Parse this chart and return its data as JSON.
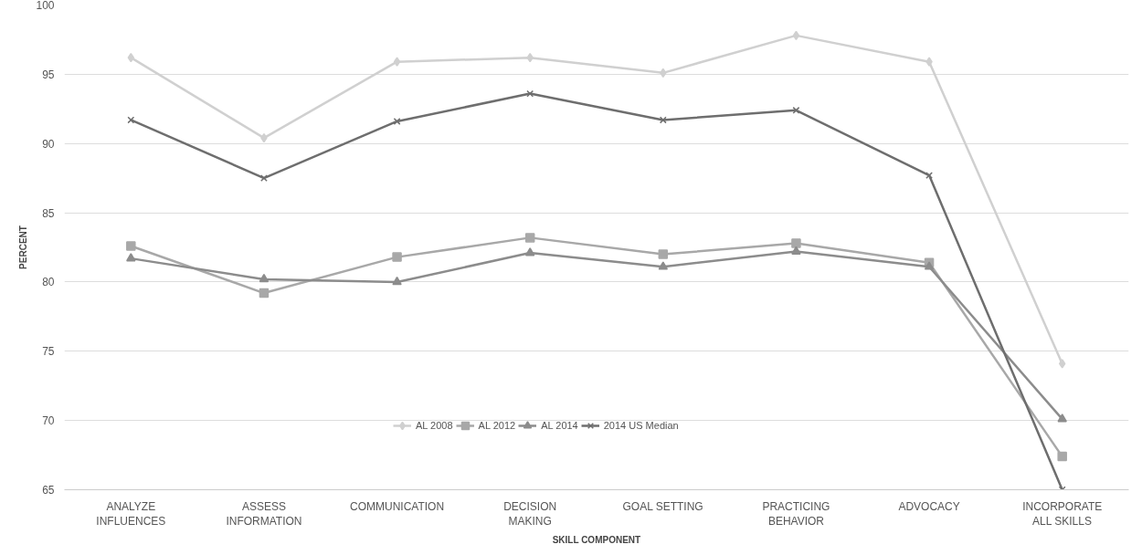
{
  "chart_data": {
    "type": "line",
    "xlabel": "SKILL COMPONENT",
    "ylabel": "PERCENT",
    "categories": [
      "ANALYZE INFLUENCES",
      "ASSESS INFORMATION",
      "COMMUNICATION",
      "DECISION MAKING",
      "GOAL SETTING",
      "PRACTICING BEHAVIOR",
      "ADVOCACY",
      "INCORPORATE ALL SKILLS"
    ],
    "series": [
      {
        "name": "AL 2008",
        "color": "#d0d0d0",
        "marker": "diamond",
        "values": [
          96.2,
          90.4,
          95.9,
          96.2,
          95.1,
          97.8,
          95.9,
          74.1
        ]
      },
      {
        "name": "AL 2012",
        "color": "#a8a8a8",
        "marker": "square",
        "values": [
          82.6,
          79.2,
          81.8,
          83.2,
          82.0,
          82.8,
          81.4,
          67.4
        ]
      },
      {
        "name": "AL 2014",
        "color": "#8c8c8c",
        "marker": "triangle",
        "values": [
          81.7,
          80.2,
          80.0,
          82.1,
          81.1,
          82.2,
          81.1,
          70.1
        ]
      },
      {
        "name": "2014 US Median",
        "color": "#6e6e6e",
        "marker": "cross",
        "values": [
          91.7,
          87.5,
          91.6,
          93.6,
          91.7,
          92.4,
          87.7,
          65.0
        ]
      }
    ],
    "ylim": [
      65,
      100
    ],
    "yticks": [
      65,
      70,
      75,
      80,
      85,
      90,
      95,
      100
    ],
    "grid": "y",
    "legend": "bottom",
    "line_style": "solid"
  }
}
